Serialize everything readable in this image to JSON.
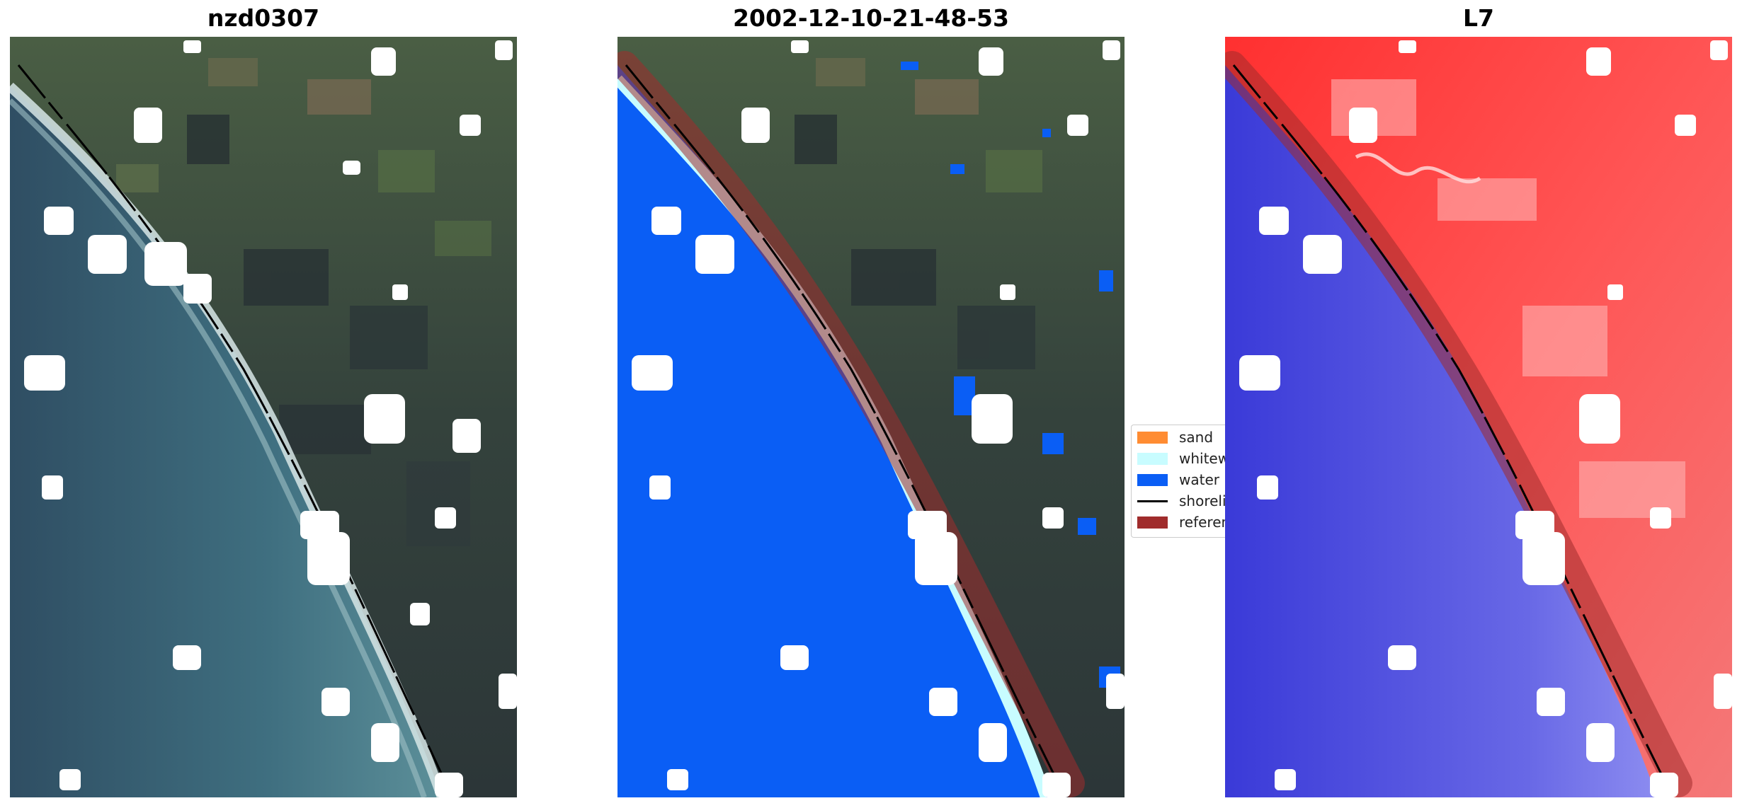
{
  "panels": {
    "left": {
      "title": "nzd0307"
    },
    "middle": {
      "title": "2002-12-10-21-48-53"
    },
    "right": {
      "title": "L7"
    }
  },
  "legend": {
    "items": [
      {
        "label": "sand",
        "color": "#ff8c32"
      },
      {
        "label": "whitewater",
        "color": "#c8fcff"
      },
      {
        "label": "water",
        "color": "#0a5ef5"
      },
      {
        "label": "shoreline",
        "color": "#000000"
      },
      {
        "label": "reference shoreline buffer",
        "color": "#a02c2c"
      }
    ]
  },
  "colors": {
    "water_class": "#0a5ef5",
    "whitewater_class": "#c8fcff",
    "buffer": "#a02c2c",
    "land_index": "#ff2020",
    "water_index": "#3030e0",
    "sea_true_color": "#34566d",
    "land_true_color": "#3a4a42"
  }
}
